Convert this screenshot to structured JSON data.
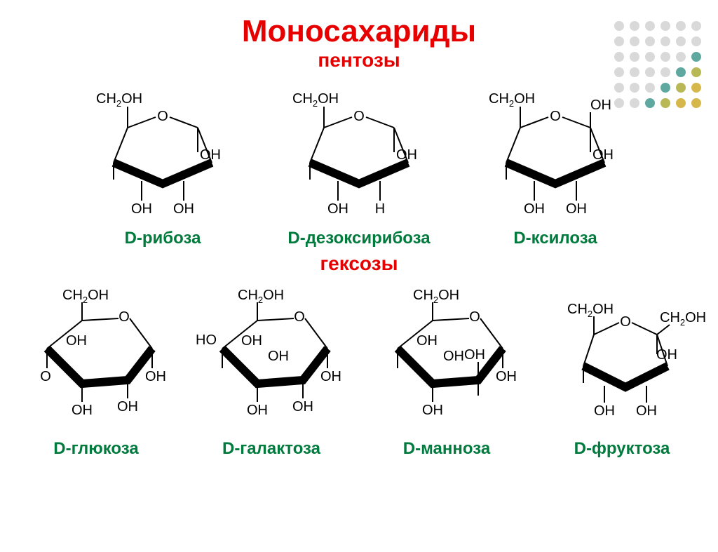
{
  "title": "Моносахариды",
  "sub_pentoses": "пентозы",
  "sub_hexoses": "гексозы",
  "colors": {
    "title": "#e60000",
    "name": "#007a3d",
    "bg": "#ffffff",
    "stroke": "#000000",
    "dot_light": "#d9d9d9",
    "dot_teal": "#5fa8a0",
    "dot_olive": "#b8b857",
    "dot_gold": "#d6b84a"
  },
  "ch2oh": "CH",
  "ch2oh_sub": "2",
  "ch2oh_tail": "OH",
  "O": "O",
  "OH": "OH",
  "H": "H",
  "HO": "HO",
  "pentoses": [
    {
      "name": "D-рибоза",
      "sub2": [
        "OH",
        "OH"
      ],
      "c1_top": "",
      "c1_bot": "OH"
    },
    {
      "name": "D-дезоксирибоза",
      "sub2": [
        "OH",
        "H"
      ],
      "c1_top": "",
      "c1_bot": "OH"
    },
    {
      "name": "D-ксилоза",
      "sub2": [
        "OH",
        "OH"
      ],
      "c1_top": "OH",
      "c1_bot": "OH"
    }
  ],
  "hexoses": [
    {
      "name": "D-глюкоза",
      "type": "pyranose"
    },
    {
      "name": "D-галактоза",
      "type": "pyranose"
    },
    {
      "name": "D-манноза",
      "type": "pyranose"
    },
    {
      "name": "D-фруктоза",
      "type": "furanose_hex"
    }
  ],
  "dot_rows": [
    [
      "l",
      "l",
      "l",
      "l",
      "l",
      "l"
    ],
    [
      "l",
      "l",
      "l",
      "l",
      "l",
      "l"
    ],
    [
      "l",
      "l",
      "l",
      "l",
      "l",
      "t"
    ],
    [
      "l",
      "l",
      "l",
      "l",
      "t",
      "o"
    ],
    [
      "l",
      "l",
      "l",
      "t",
      "o",
      "g"
    ],
    [
      "l",
      "l",
      "t",
      "o",
      "g",
      "g"
    ]
  ],
  "style": {
    "title_fontsize": 44,
    "subtitle_fontsize": 28,
    "name_fontsize": 24,
    "label_fontsize": 20,
    "stroke_thin": 2,
    "stroke_thick": 10
  }
}
